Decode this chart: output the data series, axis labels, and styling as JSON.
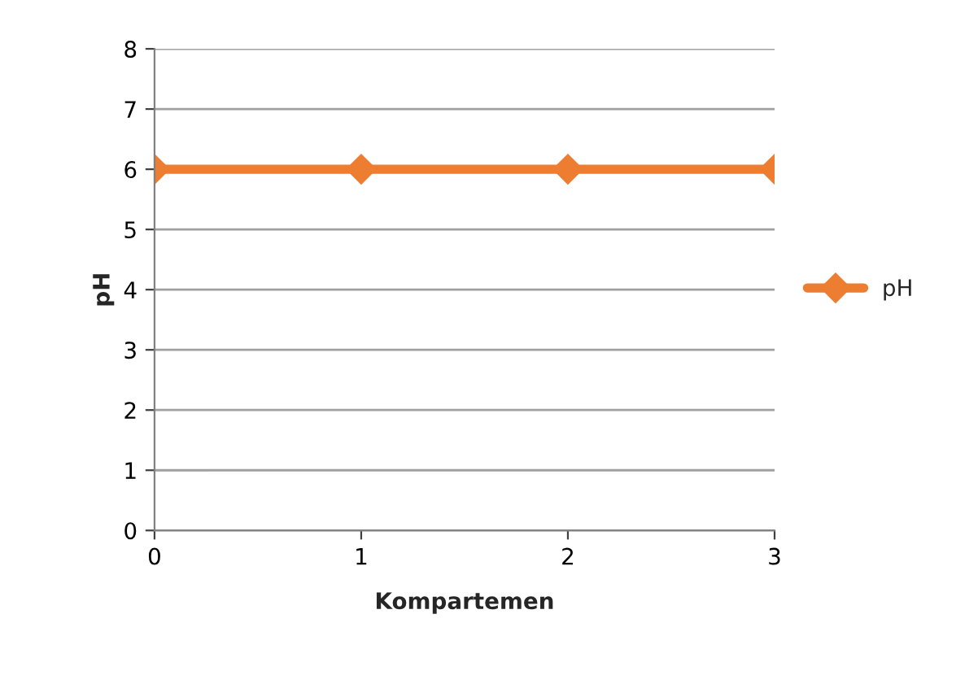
{
  "chart_data": {
    "type": "line",
    "xlabel": "Kompartemen",
    "ylabel": "pH",
    "x": [
      0,
      1,
      2,
      3
    ],
    "series": [
      {
        "name": "pH",
        "color": "#ed7d31",
        "values": [
          6,
          6,
          6,
          6
        ]
      }
    ],
    "xlim": [
      0,
      3
    ],
    "xticks": [
      0,
      1,
      2,
      3
    ],
    "ylim": [
      0,
      8
    ],
    "yticks": [
      0,
      1,
      2,
      3,
      4,
      5,
      6,
      7,
      8
    ],
    "grid": "y",
    "legend": "right",
    "marker": "diamond",
    "line_style": "solid"
  }
}
